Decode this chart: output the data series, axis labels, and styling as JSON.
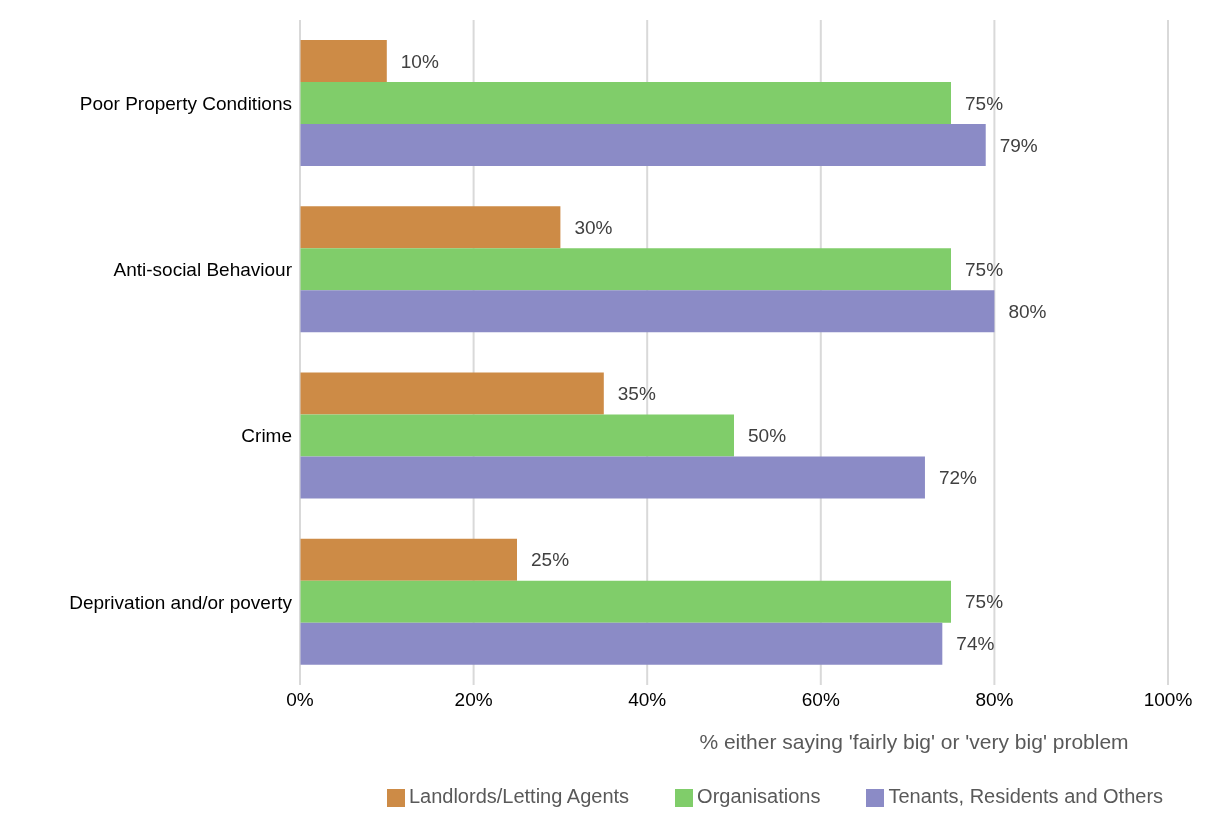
{
  "chart_data": {
    "type": "bar",
    "orientation": "horizontal",
    "categories": [
      "Poor Property Conditions",
      "Anti-social Behaviour",
      "Crime",
      "Deprivation and/or poverty"
    ],
    "series": [
      {
        "name": "Landlords/Letting Agents",
        "color": "#cd8b46",
        "values": [
          10,
          30,
          35,
          25
        ],
        "value_labels": [
          "10%",
          "30%",
          "35%",
          "25%"
        ]
      },
      {
        "name": "Organisations",
        "color": "#80cd6a",
        "values": [
          75,
          75,
          50,
          75
        ],
        "value_labels": [
          "75%",
          "75%",
          "50%",
          "75%"
        ]
      },
      {
        "name": "Tenants, Residents and Others",
        "color": "#8b8bc6",
        "values": [
          79,
          80,
          72,
          74
        ],
        "value_labels": [
          "79%",
          "80%",
          "72%",
          "74%"
        ]
      }
    ],
    "xlabel": "% either saying 'fairly big' or 'very big' problem",
    "xlim": [
      0,
      100
    ],
    "xticks": [
      {
        "value": 0,
        "label": "0%"
      },
      {
        "value": 20,
        "label": "20%"
      },
      {
        "value": 40,
        "label": "40%"
      },
      {
        "value": 60,
        "label": "60%"
      },
      {
        "value": 80,
        "label": "80%"
      },
      {
        "value": 100,
        "label": "100%"
      }
    ],
    "grid": "x",
    "legend": "bottom"
  }
}
